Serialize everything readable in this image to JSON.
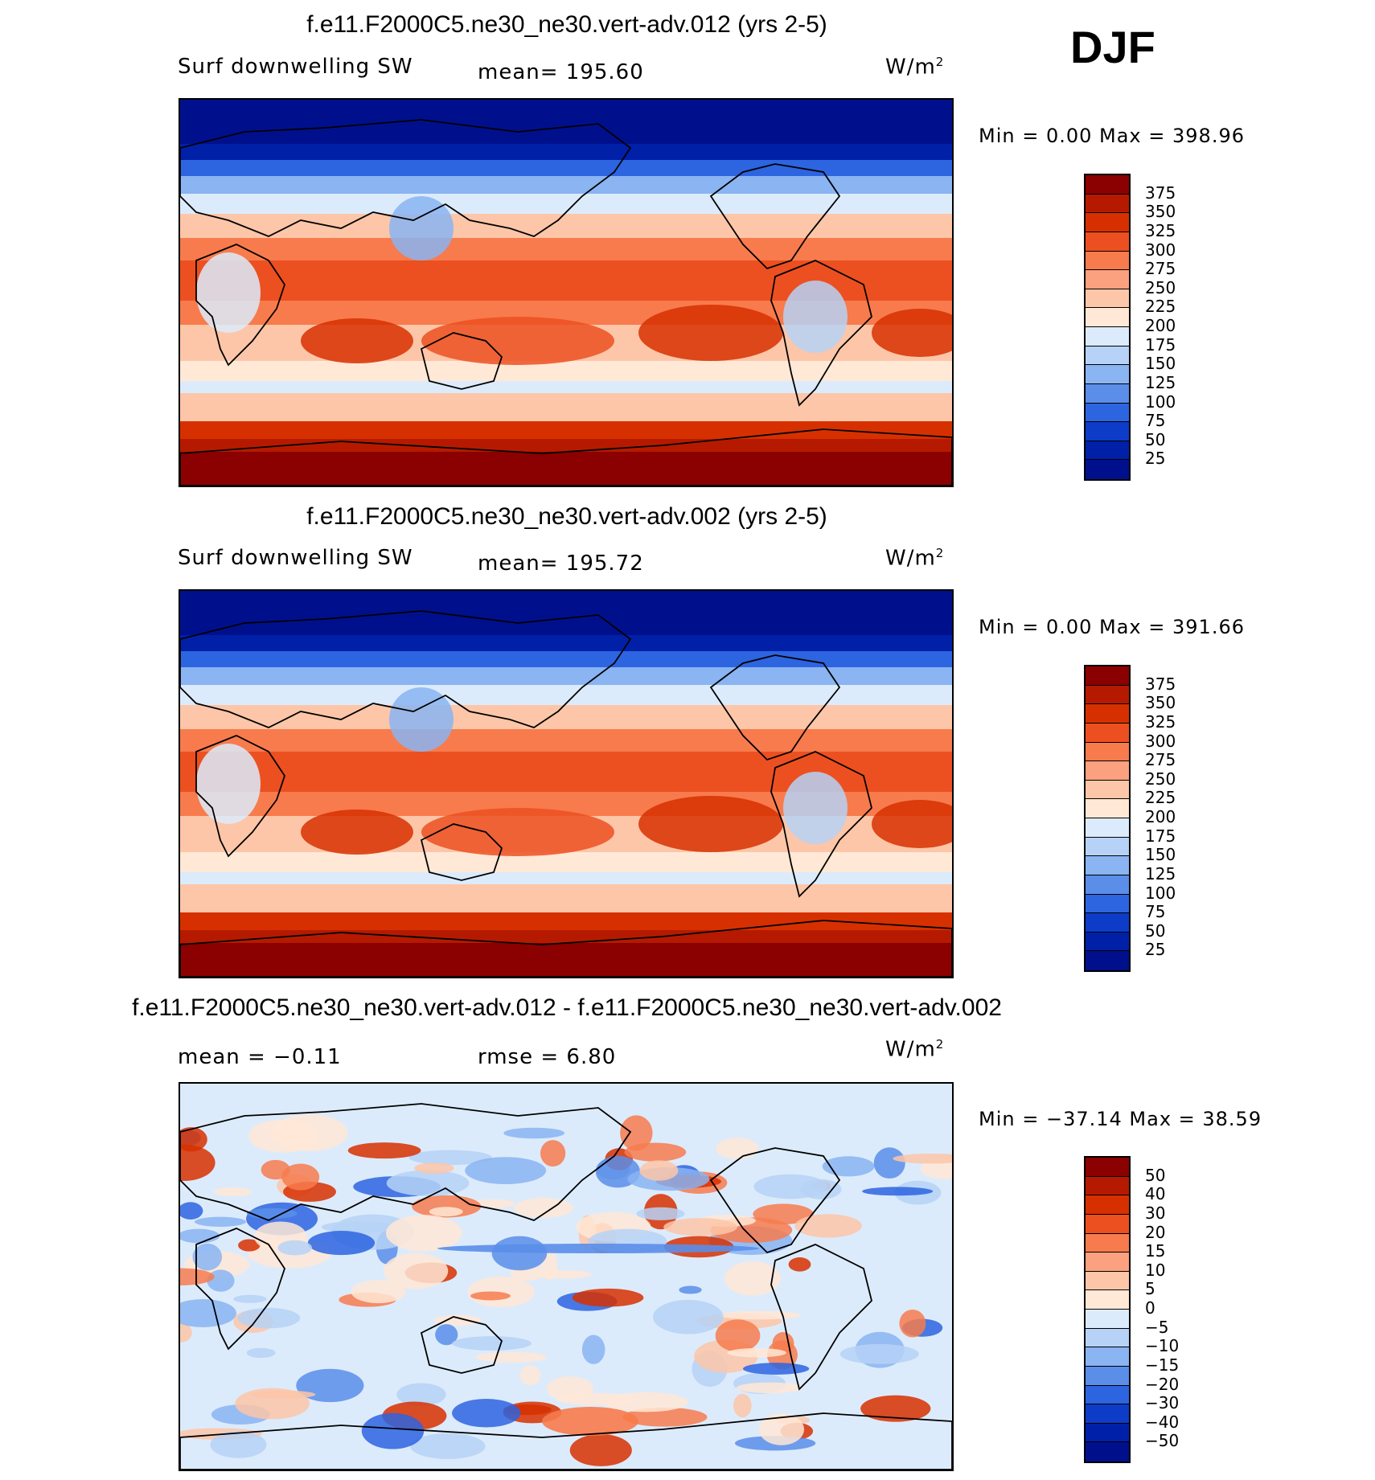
{
  "season": "DJF",
  "panels": [
    {
      "title": "f.e11.F2000C5.ne30_ne30.vert-adv.012 (yrs 2-5)",
      "variable": "Surf downwelling SW",
      "stat": "mean=  195.60",
      "units": "W/m",
      "units_sup": "2",
      "minmax": "Min =    0.00 Max = 398.96",
      "kind": "field",
      "colorbar": {
        "labels": [
          "375",
          "350",
          "325",
          "300",
          "275",
          "250",
          "225",
          "200",
          "175",
          "150",
          "125",
          "100",
          "75",
          "50",
          "25"
        ],
        "colors": [
          "#8b0000",
          "#b51a00",
          "#d73000",
          "#ec5021",
          "#f77b4d",
          "#fca17f",
          "#fdc6a8",
          "#ffe8d6",
          "#dcebfb",
          "#b6d2f6",
          "#8ab4f2",
          "#5a8ee9",
          "#2d64e0",
          "#0d3cc9",
          "#0020a8",
          "#00108c"
        ]
      }
    },
    {
      "title": "f.e11.F2000C5.ne30_ne30.vert-adv.002 (yrs 2-5)",
      "variable": "Surf downwelling SW",
      "stat": "mean=  195.72",
      "units": "W/m",
      "units_sup": "2",
      "minmax": "Min =    0.00 Max = 391.66",
      "kind": "field",
      "colorbar": {
        "labels": [
          "375",
          "350",
          "325",
          "300",
          "275",
          "250",
          "225",
          "200",
          "175",
          "150",
          "125",
          "100",
          "75",
          "50",
          "25"
        ],
        "colors": [
          "#8b0000",
          "#b51a00",
          "#d73000",
          "#ec5021",
          "#f77b4d",
          "#fca17f",
          "#fdc6a8",
          "#ffe8d6",
          "#dcebfb",
          "#b6d2f6",
          "#8ab4f2",
          "#5a8ee9",
          "#2d64e0",
          "#0d3cc9",
          "#0020a8",
          "#00108c"
        ]
      }
    },
    {
      "title": "f.e11.F2000C5.ne30_ne30.vert-adv.012 - f.e11.F2000C5.ne30_ne30.vert-adv.002",
      "variable": "mean =   −0.11",
      "stat": "rmse =    6.80",
      "units": "W/m",
      "units_sup": "2",
      "minmax": "Min = −37.14 Max =  38.59",
      "kind": "diff",
      "colorbar": {
        "labels": [
          "50",
          "40",
          "30",
          "20",
          "15",
          "10",
          "5",
          "0",
          "−5",
          "−10",
          "−15",
          "−20",
          "−30",
          "−40",
          "−50"
        ],
        "colors": [
          "#8b0000",
          "#b51a00",
          "#d73000",
          "#ec5021",
          "#f77b4d",
          "#fca17f",
          "#fdc6a8",
          "#ffe8d6",
          "#dcebfb",
          "#b6d2f6",
          "#8ab4f2",
          "#5a8ee9",
          "#2d64e0",
          "#0d3cc9",
          "#0020a8",
          "#00108c"
        ]
      }
    }
  ]
}
